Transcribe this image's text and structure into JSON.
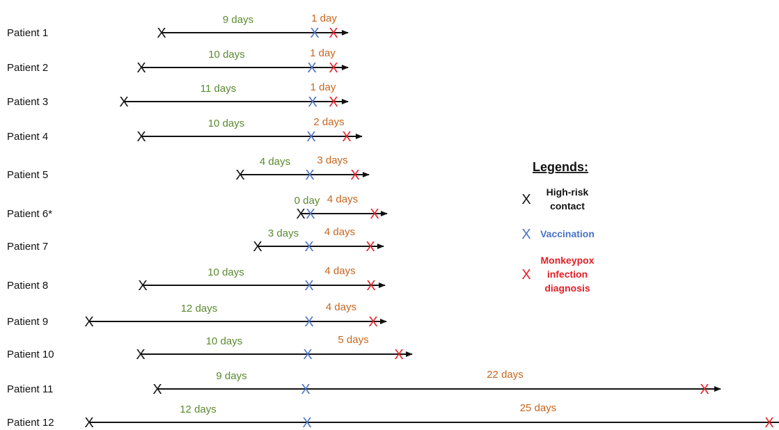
{
  "colors": {
    "contact": "#111111",
    "vaccination": "#4a72c4",
    "diagnosis": "#e41e26",
    "pre_duration": "#5a8a2e",
    "post_duration": "#c5661f"
  },
  "patients": [
    {
      "label": "Patient 1",
      "pre": "9 days",
      "post": "1 day"
    },
    {
      "label": "Patient 2",
      "pre": "10 days",
      "post": "1 day"
    },
    {
      "label": "Patient 3",
      "pre": "11 days",
      "post": "1 day"
    },
    {
      "label": "Patient 4",
      "pre": "10 days",
      "post": "2 days"
    },
    {
      "label": "Patient 5",
      "pre": "4 days",
      "post": "3 days"
    },
    {
      "label": "Patient 6*",
      "pre": "0 day",
      "post": "4 days"
    },
    {
      "label": "Patient 7",
      "pre": "3 days",
      "post": "4 days"
    },
    {
      "label": "Patient 8",
      "pre": "10 days",
      "post": "4 days"
    },
    {
      "label": "Patient 9",
      "pre": "12 days",
      "post": "4 days"
    },
    {
      "label": "Patient 10",
      "pre": "10 days",
      "post": "5 days"
    },
    {
      "label": "Patient 11",
      "pre": "9 days",
      "post": "22 days"
    },
    {
      "label": "Patient 12",
      "pre": "12 days",
      "post": "25 days"
    }
  ],
  "legend": {
    "title": "Legends:",
    "marker": "X",
    "items": [
      {
        "lines": [
          "High-risk",
          "contact"
        ],
        "color_key": "contact"
      },
      {
        "lines": [
          "Vaccination"
        ],
        "color_key": "vaccination"
      },
      {
        "lines": [
          "Monkeypox",
          "infection",
          "diagnosis"
        ],
        "color_key": "diagnosis"
      }
    ]
  }
}
